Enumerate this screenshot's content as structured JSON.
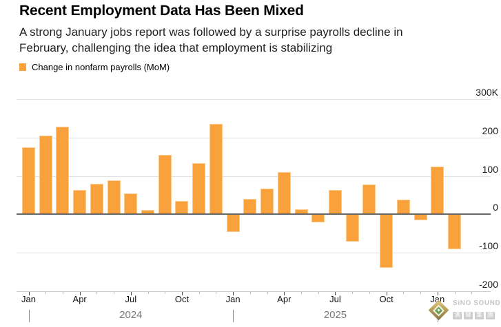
{
  "header": {
    "title": "Recent Employment Data Has Been Mixed",
    "subtitle_line1": "A strong January jobs report was followed by a surprise payrolls decline in",
    "subtitle_line2": "February, challenging the idea that employment is stabilizing"
  },
  "legend": {
    "label": "Change in nonfarm payrolls (MoM)",
    "swatch_color": "#F9A13B"
  },
  "colors": {
    "bar": "#F9A13B",
    "bar_edge": "#FBCB8D",
    "gridline": "#E0E0E0",
    "zero_line": "#666666",
    "bottom_axis_line": "#CFCFCF",
    "major_tick": "#4A4A4A",
    "minor_tick": "#B8B8B8",
    "year_label_text": "#7A7A7A",
    "text": "#000000"
  },
  "chart_data": {
    "type": "bar",
    "title": "Change in nonfarm payrolls (MoM)",
    "unit": "thousands of jobs (K)",
    "grid": true,
    "legend_position": "top-left",
    "ylim": [
      -200,
      300
    ],
    "months": [
      "Jan 2024",
      "Feb 2024",
      "Mar 2024",
      "Apr 2024",
      "May 2024",
      "Jun 2024",
      "Jul 2024",
      "Aug 2024",
      "Sep 2024",
      "Oct 2024",
      "Nov 2024",
      "Dec 2024",
      "Jan 2025",
      "Feb 2025",
      "Mar 2025",
      "Apr 2025",
      "May 2025",
      "Jun 2025",
      "Jul 2025",
      "Aug 2025",
      "Sep 2025",
      "Oct 2025",
      "Nov 2025",
      "Dec 2025",
      "Jan 2026",
      "Feb 2026"
    ],
    "values": [
      175,
      205,
      228,
      64,
      79,
      88,
      54,
      12,
      155,
      34,
      134,
      235,
      -46,
      40,
      67,
      110,
      13,
      -20,
      64,
      -71,
      77,
      -139,
      39,
      -15,
      125,
      -90
    ],
    "yticks": [
      {
        "value": 300,
        "label": "300K"
      },
      {
        "value": 200,
        "label": "200"
      },
      {
        "value": 100,
        "label": "100"
      },
      {
        "value": 0,
        "label": "0"
      },
      {
        "value": -100,
        "label": "-100"
      },
      {
        "value": -200,
        "label": "-200"
      }
    ],
    "xticks": [
      {
        "index": 0,
        "label": "Jan"
      },
      {
        "index": 3,
        "label": "Apr"
      },
      {
        "index": 6,
        "label": "Jul"
      },
      {
        "index": 9,
        "label": "Oct"
      },
      {
        "index": 12,
        "label": "Jan"
      },
      {
        "index": 15,
        "label": "Apr"
      },
      {
        "index": 18,
        "label": "Jul"
      },
      {
        "index": 21,
        "label": "Oct"
      },
      {
        "index": 24,
        "label": "Jan"
      }
    ],
    "year_dividers": [
      0,
      12,
      24
    ],
    "years": [
      {
        "label": "2024",
        "between": [
          0,
          12
        ]
      },
      {
        "label": "2025",
        "between": [
          12,
          24
        ]
      }
    ]
  },
  "watermark": {
    "name": "SiNO SOUND",
    "chinese_name": "漢聲集團"
  }
}
